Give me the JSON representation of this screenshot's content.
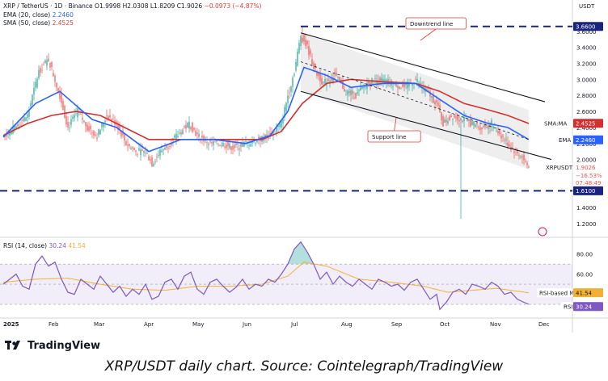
{
  "header": {
    "line1_symbol": "XRP / TetherUS · 1D · Binance",
    "line1_o": "O1.9998",
    "line1_h": "H2.0308",
    "line1_l": "L1.8209",
    "line1_c": "C1.9026",
    "line1_chg": "−0.0973 (−4.87%)",
    "ema_label": "EMA (20, close)",
    "ema_value": "2.2460",
    "sma_label": "SMA (50, close)",
    "sma_value": "2.4525",
    "rsi_label": "RSI (14, close)",
    "rsi_value": "30.24",
    "rsi_ma_value": "41.54"
  },
  "caption": "XRP/USDT daily chart. Source: Cointelegraph/TradingView",
  "brand": "TradingView",
  "colors": {
    "up": "#26a69a",
    "down": "#ef5350",
    "ema": "#2962ff",
    "sma": "#d32f2f",
    "rsi": "#7e57c2",
    "rsi_ma": "#f2b134",
    "trend": "#131722",
    "levels": "#1a237e"
  },
  "chart_data": [
    {
      "type": "candlestick",
      "title": "XRP / TetherUS · 1D · Binance",
      "currency": "USDT",
      "ylim": [
        1.05,
        3.95
      ],
      "x_tick_labels": [
        "2025",
        "Feb",
        "Mar",
        "Apr",
        "May",
        "Jun",
        "Jul",
        "Aug",
        "Sep",
        "Oct",
        "Nov",
        "Dec"
      ],
      "y_tick_labels": [
        "3.6000",
        "3.4000",
        "3.2000",
        "3.0000",
        "2.8000",
        "2.6000",
        "2.4000",
        "2.2000",
        "2.0000",
        "1.8000",
        "1.6000",
        "1.4000",
        "1.2000"
      ],
      "close_path": [
        [
          0,
          2.3
        ],
        [
          8,
          2.4
        ],
        [
          15,
          2.55
        ],
        [
          22,
          3.1
        ],
        [
          28,
          3.25
        ],
        [
          35,
          2.8
        ],
        [
          40,
          2.4
        ],
        [
          46,
          2.6
        ],
        [
          52,
          2.4
        ],
        [
          58,
          2.3
        ],
        [
          64,
          2.55
        ],
        [
          70,
          2.45
        ],
        [
          76,
          2.2
        ],
        [
          82,
          2.1
        ],
        [
          88,
          2.1
        ],
        [
          92,
          1.95
        ],
        [
          97,
          2.1
        ],
        [
          103,
          2.2
        ],
        [
          110,
          2.35
        ],
        [
          115,
          2.45
        ],
        [
          120,
          2.3
        ],
        [
          128,
          2.2
        ],
        [
          135,
          2.2
        ],
        [
          142,
          2.15
        ],
        [
          150,
          2.2
        ],
        [
          158,
          2.25
        ],
        [
          165,
          2.3
        ],
        [
          172,
          2.45
        ],
        [
          176,
          2.8
        ],
        [
          180,
          3.1
        ],
        [
          184,
          3.55
        ],
        [
          188,
          3.4
        ],
        [
          193,
          3.1
        ],
        [
          198,
          2.95
        ],
        [
          205,
          3.05
        ],
        [
          212,
          2.85
        ],
        [
          218,
          2.8
        ],
        [
          225,
          2.95
        ],
        [
          232,
          3.0
        ],
        [
          240,
          2.95
        ],
        [
          248,
          2.9
        ],
        [
          255,
          3.0
        ],
        [
          262,
          2.85
        ],
        [
          268,
          2.7
        ],
        [
          272,
          2.45
        ],
        [
          278,
          2.55
        ],
        [
          284,
          2.5
        ],
        [
          290,
          2.45
        ],
        [
          296,
          2.4
        ],
        [
          302,
          2.45
        ],
        [
          308,
          2.3
        ],
        [
          314,
          2.15
        ],
        [
          320,
          2.05
        ],
        [
          325,
          1.9
        ]
      ],
      "wick_low_oct10": 1.26,
      "wick_high_jul": 3.66,
      "ema_path": [
        [
          0,
          2.28
        ],
        [
          20,
          2.7
        ],
        [
          35,
          2.85
        ],
        [
          55,
          2.5
        ],
        [
          70,
          2.4
        ],
        [
          90,
          2.1
        ],
        [
          110,
          2.25
        ],
        [
          130,
          2.25
        ],
        [
          150,
          2.2
        ],
        [
          165,
          2.3
        ],
        [
          176,
          2.6
        ],
        [
          186,
          3.15
        ],
        [
          200,
          3.05
        ],
        [
          215,
          2.9
        ],
        [
          235,
          2.95
        ],
        [
          255,
          2.95
        ],
        [
          270,
          2.75
        ],
        [
          285,
          2.55
        ],
        [
          300,
          2.45
        ],
        [
          312,
          2.4
        ],
        [
          325,
          2.25
        ]
      ],
      "sma_path": [
        [
          0,
          2.3
        ],
        [
          15,
          2.45
        ],
        [
          30,
          2.55
        ],
        [
          45,
          2.6
        ],
        [
          60,
          2.55
        ],
        [
          75,
          2.4
        ],
        [
          90,
          2.25
        ],
        [
          105,
          2.25
        ],
        [
          120,
          2.25
        ],
        [
          140,
          2.25
        ],
        [
          160,
          2.25
        ],
        [
          172,
          2.35
        ],
        [
          185,
          2.7
        ],
        [
          200,
          2.95
        ],
        [
          215,
          3.0
        ],
        [
          235,
          2.97
        ],
        [
          255,
          2.95
        ],
        [
          270,
          2.85
        ],
        [
          285,
          2.7
        ],
        [
          300,
          2.62
        ],
        [
          312,
          2.55
        ],
        [
          325,
          2.45
        ]
      ],
      "downtrend_line": [
        [
          184,
          3.58
        ],
        [
          325,
          2.62
        ]
      ],
      "support_line": [
        [
          184,
          2.85
        ],
        [
          325,
          1.88
        ]
      ],
      "midline": [
        [
          184,
          3.22
        ],
        [
          325,
          2.25
        ]
      ],
      "horizontal_levels": [
        3.66,
        1.61
      ],
      "annotations": {
        "downtrend": "Downtrend line",
        "support": "Support line"
      },
      "price_labels": [
        {
          "text": "SMA:MA",
          "value": "2.4525"
        },
        {
          "text": "EMA",
          "value": "2.2460"
        },
        {
          "text": "XRPUSDT",
          "value": "1.9026"
        },
        {
          "text": "",
          "value": "−16.53%"
        },
        {
          "text": "",
          "value": "07:48:49"
        },
        {
          "text": "",
          "value": "1.6100"
        },
        {
          "text": "",
          "value": "3.6600"
        }
      ]
    },
    {
      "type": "line",
      "title": "RSI (14, close)",
      "ylim": [
        18,
        95
      ],
      "y_tick_labels": [
        "80.00",
        "60.00",
        "40.00"
      ],
      "bands": [
        30,
        70
      ],
      "rsi_path": [
        [
          0,
          50
        ],
        [
          4,
          55
        ],
        [
          8,
          60
        ],
        [
          12,
          48
        ],
        [
          16,
          45
        ],
        [
          20,
          70
        ],
        [
          24,
          78
        ],
        [
          28,
          68
        ],
        [
          32,
          72
        ],
        [
          36,
          55
        ],
        [
          40,
          42
        ],
        [
          44,
          40
        ],
        [
          48,
          55
        ],
        [
          52,
          50
        ],
        [
          56,
          45
        ],
        [
          60,
          58
        ],
        [
          64,
          50
        ],
        [
          68,
          42
        ],
        [
          72,
          48
        ],
        [
          76,
          38
        ],
        [
          80,
          45
        ],
        [
          84,
          40
        ],
        [
          88,
          50
        ],
        [
          92,
          35
        ],
        [
          96,
          38
        ],
        [
          100,
          52
        ],
        [
          104,
          55
        ],
        [
          108,
          45
        ],
        [
          112,
          58
        ],
        [
          116,
          62
        ],
        [
          120,
          45
        ],
        [
          124,
          40
        ],
        [
          128,
          52
        ],
        [
          132,
          55
        ],
        [
          136,
          48
        ],
        [
          140,
          42
        ],
        [
          144,
          47
        ],
        [
          148,
          55
        ],
        [
          152,
          45
        ],
        [
          156,
          50
        ],
        [
          160,
          48
        ],
        [
          164,
          55
        ],
        [
          168,
          52
        ],
        [
          172,
          60
        ],
        [
          176,
          70
        ],
        [
          180,
          85
        ],
        [
          184,
          92
        ],
        [
          188,
          82
        ],
        [
          192,
          70
        ],
        [
          196,
          55
        ],
        [
          200,
          62
        ],
        [
          204,
          50
        ],
        [
          208,
          58
        ],
        [
          212,
          52
        ],
        [
          216,
          48
        ],
        [
          220,
          55
        ],
        [
          224,
          50
        ],
        [
          228,
          45
        ],
        [
          232,
          55
        ],
        [
          236,
          52
        ],
        [
          240,
          48
        ],
        [
          244,
          50
        ],
        [
          248,
          44
        ],
        [
          252,
          52
        ],
        [
          256,
          55
        ],
        [
          260,
          45
        ],
        [
          264,
          35
        ],
        [
          268,
          40
        ],
        [
          270,
          25
        ],
        [
          274,
          32
        ],
        [
          278,
          42
        ],
        [
          282,
          45
        ],
        [
          286,
          40
        ],
        [
          290,
          50
        ],
        [
          294,
          48
        ],
        [
          298,
          45
        ],
        [
          302,
          52
        ],
        [
          306,
          48
        ],
        [
          310,
          40
        ],
        [
          314,
          42
        ],
        [
          318,
          35
        ],
        [
          322,
          32
        ],
        [
          325,
          30
        ]
      ],
      "rsi_ma_path": [
        [
          0,
          52
        ],
        [
          20,
          55
        ],
        [
          40,
          56
        ],
        [
          60,
          50
        ],
        [
          80,
          45
        ],
        [
          100,
          44
        ],
        [
          120,
          48
        ],
        [
          140,
          48
        ],
        [
          160,
          50
        ],
        [
          176,
          58
        ],
        [
          186,
          72
        ],
        [
          200,
          68
        ],
        [
          220,
          55
        ],
        [
          240,
          52
        ],
        [
          260,
          48
        ],
        [
          275,
          42
        ],
        [
          290,
          44
        ],
        [
          305,
          46
        ],
        [
          318,
          43
        ],
        [
          325,
          41.5
        ]
      ],
      "value": "30.24",
      "ma_value": "41.54",
      "ma_label": "RSI-based MA",
      "label": "RSI"
    }
  ]
}
